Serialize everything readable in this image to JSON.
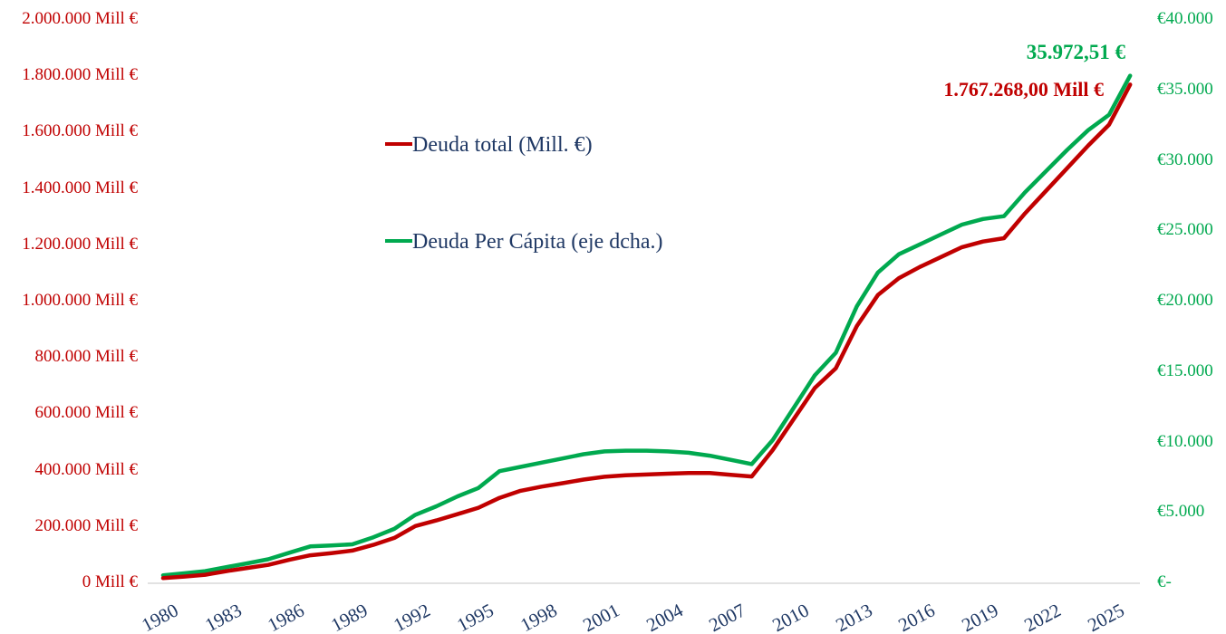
{
  "colors": {
    "red": "#C00000",
    "green": "#00A94F",
    "navy": "#1F3864",
    "axis_line": "#D9D9D9",
    "background": "#FFFFFF"
  },
  "legend": {
    "items": [
      {
        "label": "Deuda total (Mill. €)",
        "color": "#C00000"
      },
      {
        "label": "Deuda Per Cápita (eje dcha.)",
        "color": "#00A94F"
      }
    ]
  },
  "chart_data": {
    "type": "line",
    "title": "",
    "grid": false,
    "legend_position": "upper-center-left",
    "x": [
      1980,
      1981,
      1982,
      1983,
      1984,
      1985,
      1986,
      1987,
      1988,
      1989,
      1990,
      1991,
      1992,
      1993,
      1994,
      1995,
      1996,
      1997,
      1998,
      1999,
      2000,
      2001,
      2002,
      2003,
      2004,
      2005,
      2006,
      2007,
      2008,
      2009,
      2010,
      2011,
      2012,
      2013,
      2014,
      2015,
      2016,
      2017,
      2018,
      2019,
      2020,
      2021,
      2022,
      2023,
      2024,
      2025,
      2026
    ],
    "series": [
      {
        "name": "Deuda Per Cápita (eje dcha.)",
        "axis": "right",
        "color": "#00A94F",
        "values": [
          500,
          640,
          800,
          1080,
          1350,
          1640,
          2100,
          2550,
          2620,
          2700,
          3200,
          3800,
          4800,
          5400,
          6100,
          6700,
          7900,
          8200,
          8500,
          8800,
          9100,
          9300,
          9350,
          9350,
          9300,
          9200,
          9000,
          8700,
          8400,
          10100,
          12400,
          14700,
          16300,
          19600,
          22000,
          23300,
          24000,
          24700,
          25400,
          25800,
          26000,
          27700,
          29200,
          30700,
          32100,
          33200,
          35972.51
        ]
      },
      {
        "name": "Deuda total (Mill. €)",
        "axis": "left",
        "color": "#C00000",
        "values": [
          15000,
          20500,
          27000,
          40000,
          51000,
          62000,
          80000,
          96000,
          104000,
          113000,
          133000,
          158000,
          200000,
          220000,
          242000,
          265000,
          300000,
          325000,
          340000,
          352000,
          365000,
          375000,
          380000,
          383000,
          386000,
          388000,
          388000,
          382000,
          376000,
          470000,
          580000,
          690000,
          760000,
          910000,
          1020000,
          1080000,
          1120000,
          1155000,
          1190000,
          1210000,
          1222000,
          1310000,
          1390000,
          1470000,
          1550000,
          1625000,
          1767268
        ]
      }
    ],
    "left_axis": {
      "range": [
        0,
        2000000
      ],
      "ticks": [
        {
          "label": "2.000.000 Mill €",
          "value": 2000000
        },
        {
          "label": "1.800.000 Mill €",
          "value": 1800000
        },
        {
          "label": "1.600.000 Mill €",
          "value": 1600000
        },
        {
          "label": "1.400.000 Mill €",
          "value": 1400000
        },
        {
          "label": "1.200.000 Mill €",
          "value": 1200000
        },
        {
          "label": "1.000.000 Mill €",
          "value": 1000000
        },
        {
          "label": "800.000 Mill €",
          "value": 800000
        },
        {
          "label": "600.000 Mill €",
          "value": 600000
        },
        {
          "label": "400.000 Mill €",
          "value": 400000
        },
        {
          "label": "200.000 Mill €",
          "value": 200000
        },
        {
          "label": "0 Mill €",
          "value": 0
        }
      ]
    },
    "right_axis": {
      "range": [
        0,
        40000
      ],
      "ticks": [
        {
          "label": "€40.000",
          "value": 40000
        },
        {
          "label": "€35.000",
          "value": 35000
        },
        {
          "label": "€30.000",
          "value": 30000
        },
        {
          "label": "€25.000",
          "value": 25000
        },
        {
          "label": "€20.000",
          "value": 20000
        },
        {
          "label": "€15.000",
          "value": 15000
        },
        {
          "label": "€10.000",
          "value": 10000
        },
        {
          "label": "€5.000",
          "value": 5000
        },
        {
          "label": "€-",
          "value": 0
        }
      ]
    },
    "x_axis": {
      "ticks": [
        "1980",
        "1983",
        "1986",
        "1989",
        "1992",
        "1995",
        "1998",
        "2001",
        "2004",
        "2007",
        "2010",
        "2013",
        "2016",
        "2019",
        "2022",
        "2025"
      ]
    },
    "end_labels": [
      {
        "series": "Deuda Per Cápita (eje dcha.)",
        "text": "35.972,51 €",
        "color": "#00A94F"
      },
      {
        "series": "Deuda total (Mill. €)",
        "text": "1.767.268,00 Mill €",
        "color": "#C00000"
      }
    ]
  }
}
